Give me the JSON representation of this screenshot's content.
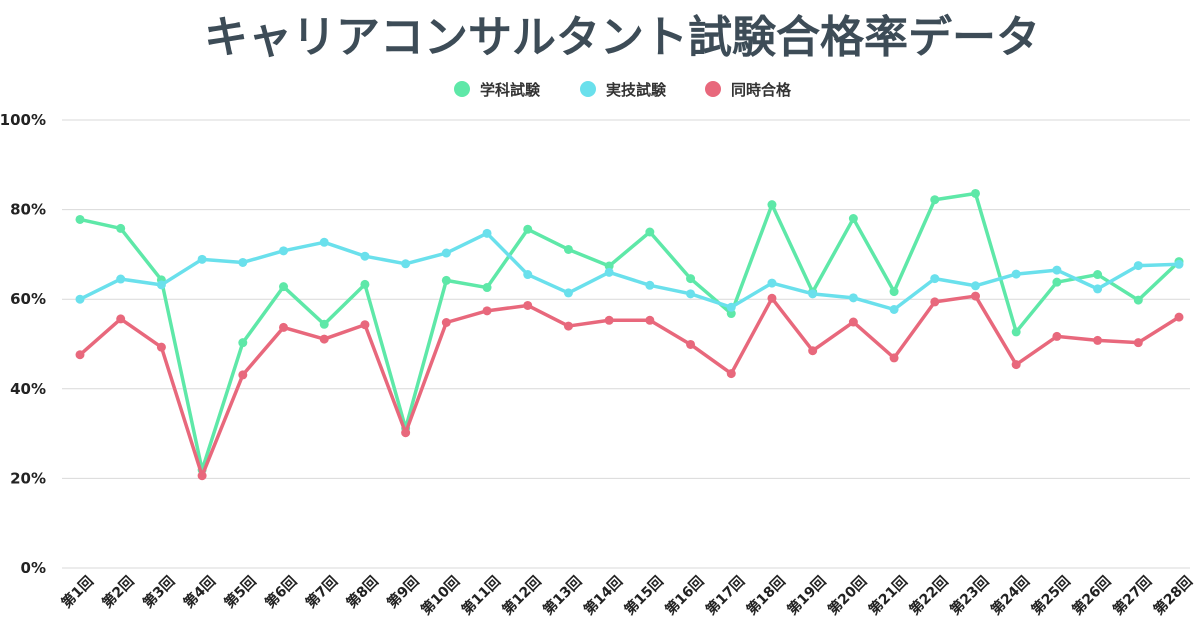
{
  "chart_data": {
    "type": "line",
    "title": "キャリアコンサルタント試験合格率データ",
    "xlabel": "",
    "ylabel": "",
    "ylim": [
      0,
      100
    ],
    "y_ticks": [
      "0%",
      "20%",
      "40%",
      "60%",
      "80%",
      "100%"
    ],
    "grid": true,
    "legend_position": "top-center",
    "categories": [
      "第1回",
      "第2回",
      "第3回",
      "第4回",
      "第5回",
      "第6回",
      "第7回",
      "第8回",
      "第9回",
      "第10回",
      "第11回",
      "第12回",
      "第13回",
      "第14回",
      "第15回",
      "第16回",
      "第17回",
      "第18回",
      "第19回",
      "第20回",
      "第21回",
      "第22回",
      "第23回",
      "第24回",
      "第25回",
      "第26回",
      "第27回",
      "第28回"
    ],
    "series": [
      {
        "name": "学科試験",
        "color": "#5ee8a8",
        "values": [
          77.8,
          75.8,
          64.3,
          21.9,
          50.3,
          62.8,
          54.4,
          63.3,
          31.2,
          64.2,
          62.6,
          75.6,
          71.1,
          67.4,
          75.0,
          64.6,
          56.8,
          81.1,
          61.6,
          78.0,
          61.7,
          82.2,
          83.6,
          52.7,
          63.8,
          65.5,
          59.8,
          68.4
        ]
      },
      {
        "name": "実技試験",
        "color": "#6ae0ec",
        "values": [
          60.0,
          64.5,
          63.2,
          68.9,
          68.2,
          70.8,
          72.7,
          69.6,
          67.9,
          70.3,
          74.7,
          65.5,
          61.4,
          66.0,
          63.1,
          61.2,
          58.2,
          63.6,
          61.2,
          60.3,
          57.7,
          64.6,
          63.0,
          65.6,
          66.5,
          62.3,
          67.5,
          67.8
        ]
      },
      {
        "name": "同時合格",
        "color": "#e8687c",
        "values": [
          47.6,
          55.6,
          49.3,
          20.6,
          43.1,
          53.7,
          51.1,
          54.3,
          30.2,
          54.8,
          57.4,
          58.6,
          54.0,
          55.3,
          55.3,
          49.9,
          43.4,
          60.2,
          48.5,
          54.9,
          46.9,
          59.4,
          60.7,
          45.4,
          51.7,
          50.8,
          50.3,
          56.0
        ]
      }
    ]
  }
}
